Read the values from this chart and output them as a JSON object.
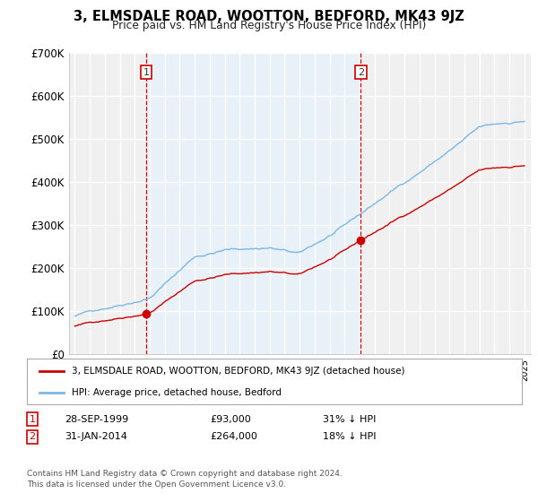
{
  "title": "3, ELMSDALE ROAD, WOOTTON, BEDFORD, MK43 9JZ",
  "subtitle": "Price paid vs. HM Land Registry's House Price Index (HPI)",
  "ylim": [
    0,
    700000
  ],
  "yticks": [
    0,
    100000,
    200000,
    300000,
    400000,
    500000,
    600000,
    700000
  ],
  "ytick_labels": [
    "£0",
    "£100K",
    "£200K",
    "£300K",
    "£400K",
    "£500K",
    "£600K",
    "£700K"
  ],
  "background_color": "#ffffff",
  "plot_bg_color": "#e8f0f8",
  "plot_bg_outside_color": "#f0f0f0",
  "grid_color": "#ffffff",
  "hpi_color": "#7ab8e8",
  "price_color": "#cc0000",
  "sale1_year": 1999.75,
  "sale1_price": 93000,
  "sale2_year": 2014.08,
  "sale2_price": 264000,
  "legend_label_price": "3, ELMSDALE ROAD, WOOTTON, BEDFORD, MK43 9JZ (detached house)",
  "legend_label_hpi": "HPI: Average price, detached house, Bedford",
  "table_rows": [
    {
      "label": "1",
      "date": "28-SEP-1999",
      "price": "£93,000",
      "pct": "31% ↓ HPI"
    },
    {
      "label": "2",
      "date": "31-JAN-2014",
      "price": "£264,000",
      "pct": "18% ↓ HPI"
    }
  ],
  "footnote": "Contains HM Land Registry data © Crown copyright and database right 2024.\nThis data is licensed under the Open Government Licence v3.0.",
  "x_start_year": 1995,
  "x_end_year": 2025
}
